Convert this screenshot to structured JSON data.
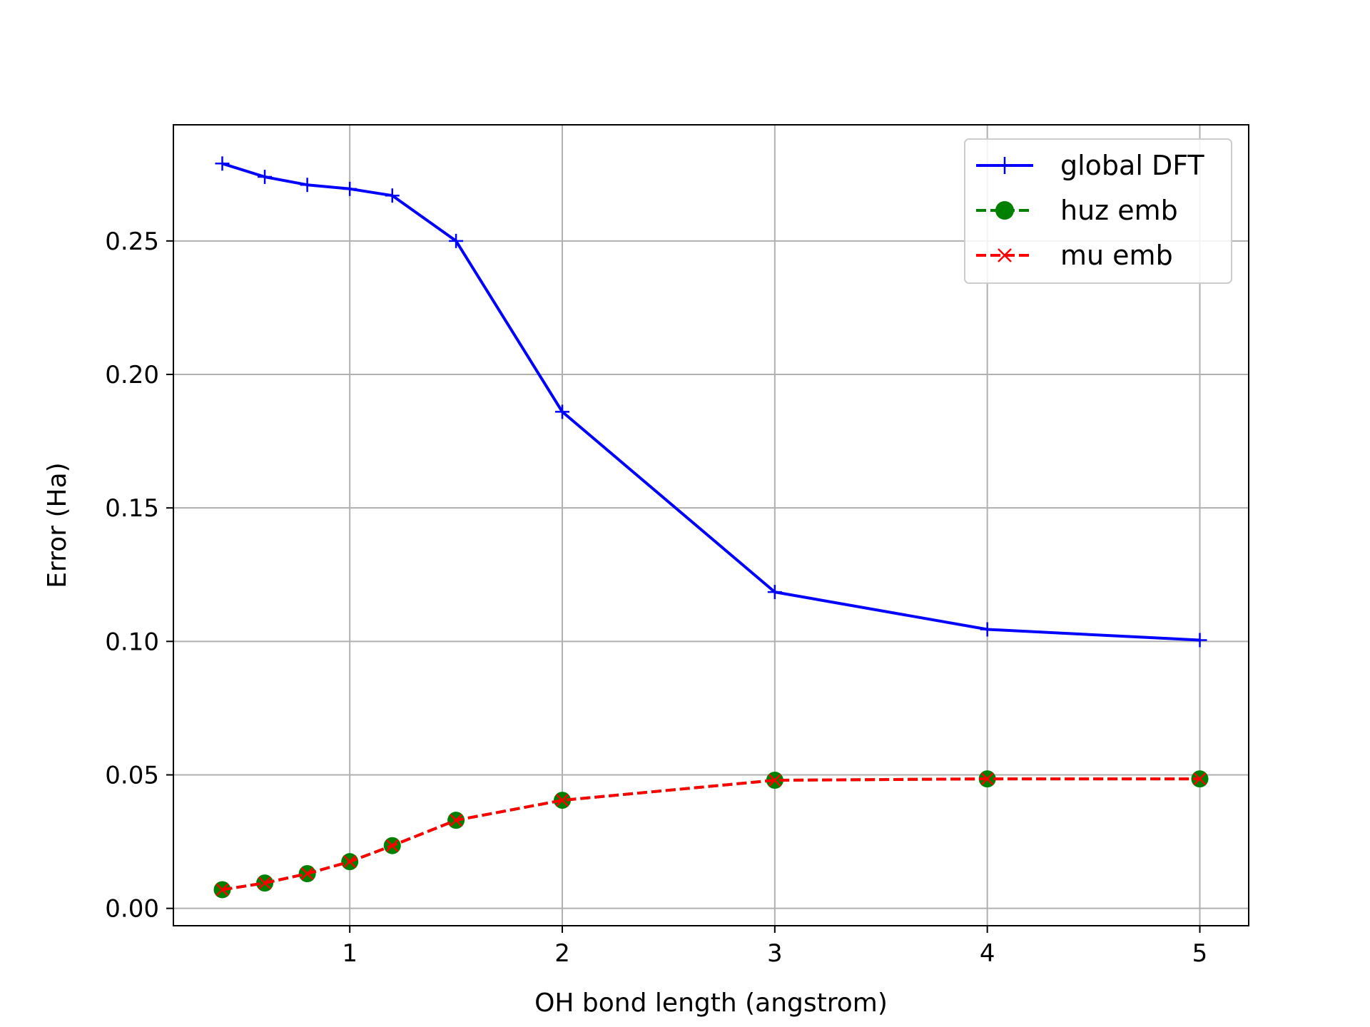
{
  "chart_data": {
    "type": "line",
    "title": "",
    "xlabel": "OH bond length (angstrom)",
    "ylabel": "Error (Ha)",
    "xlim": [
      0.17,
      5.23
    ],
    "ylim": [
      -0.0065,
      0.2935
    ],
    "xticks": [
      1,
      2,
      3,
      4,
      5
    ],
    "yticks": [
      0.0,
      0.05,
      0.1,
      0.15,
      0.2,
      0.25
    ],
    "ytick_labels": [
      "0.00",
      "0.05",
      "0.10",
      "0.15",
      "0.20",
      "0.25"
    ],
    "grid": true,
    "legend_position": "top-right",
    "x": [
      0.4,
      0.6,
      0.8,
      1.0,
      1.2,
      1.5,
      2.0,
      3.0,
      4.0,
      5.0
    ],
    "series": [
      {
        "name": "global DFT",
        "color": "#0000ff",
        "line": "solid",
        "marker": "plus",
        "values": [
          0.279,
          0.274,
          0.271,
          0.2695,
          0.267,
          0.25,
          0.186,
          0.1185,
          0.1045,
          0.1005
        ]
      },
      {
        "name": "huz emb",
        "color": "#008000",
        "line": "dashed",
        "marker": "circle",
        "values": [
          0.007,
          0.0095,
          0.013,
          0.0175,
          0.0235,
          0.033,
          0.0405,
          0.048,
          0.0485,
          0.0485
        ]
      },
      {
        "name": "mu emb",
        "color": "#ff0000",
        "line": "dashed",
        "marker": "x",
        "values": [
          0.007,
          0.0095,
          0.013,
          0.0175,
          0.0235,
          0.033,
          0.0405,
          0.048,
          0.0485,
          0.0485
        ]
      }
    ]
  }
}
